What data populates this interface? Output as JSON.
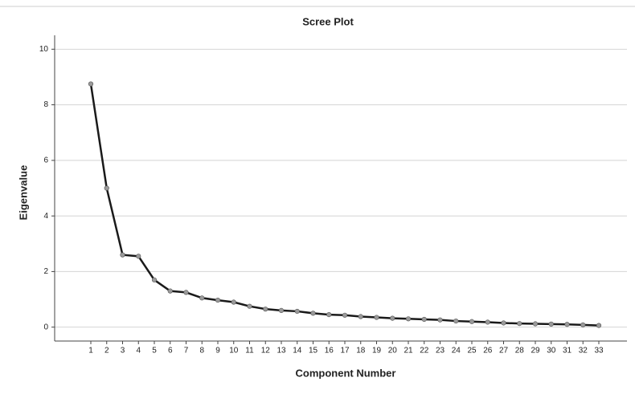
{
  "chart_data": {
    "type": "line",
    "title": "Scree Plot",
    "x_label": "Component Number",
    "y_label": "Eigenvalue",
    "categories": [
      "1",
      "2",
      "3",
      "4",
      "5",
      "6",
      "7",
      "8",
      "9",
      "10",
      "11",
      "12",
      "13",
      "14",
      "15",
      "16",
      "17",
      "18",
      "19",
      "20",
      "21",
      "22",
      "23",
      "24",
      "25",
      "26",
      "27",
      "28",
      "29",
      "30",
      "31",
      "32",
      "33"
    ],
    "values": [
      8.75,
      5.0,
      2.6,
      2.55,
      1.7,
      1.3,
      1.25,
      1.05,
      0.97,
      0.9,
      0.75,
      0.65,
      0.6,
      0.57,
      0.5,
      0.45,
      0.43,
      0.38,
      0.35,
      0.32,
      0.3,
      0.28,
      0.26,
      0.22,
      0.2,
      0.18,
      0.15,
      0.13,
      0.12,
      0.11,
      0.1,
      0.08,
      0.06
    ],
    "color": "#1a1a1a",
    "marker_color": "#9a9a9a",
    "ylim": [
      -0.5,
      10.5
    ],
    "yticks": [
      0,
      2,
      4,
      6,
      8,
      10
    ],
    "grid": true
  }
}
